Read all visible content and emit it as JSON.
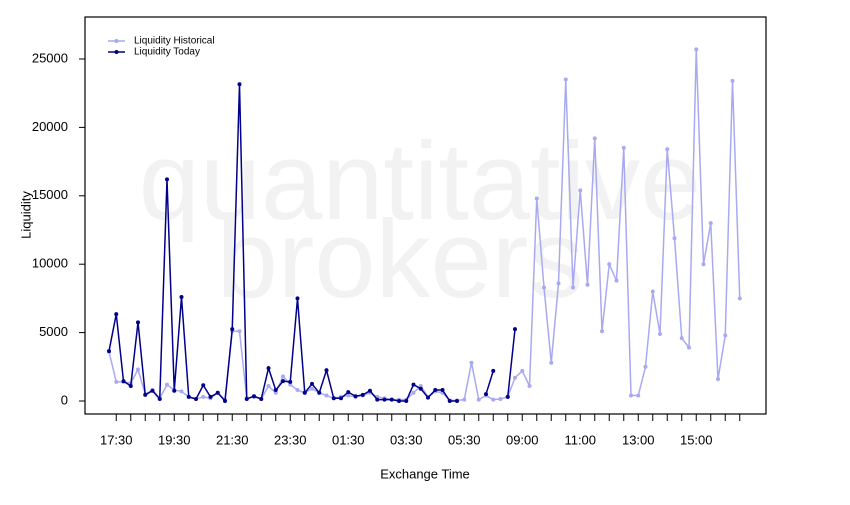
{
  "chart_data": {
    "type": "line",
    "watermark": [
      "quantitative",
      "brokers"
    ],
    "x_label": "Exchange Time",
    "y_label": "Liquidity",
    "legend": "top-left",
    "categories": [
      null,
      "17:30",
      null,
      null,
      null,
      null,
      null,
      null,
      null,
      "19:30",
      null,
      null,
      null,
      null,
      null,
      null,
      null,
      "21:30",
      null,
      null,
      null,
      null,
      null,
      null,
      null,
      "23:30",
      null,
      null,
      null,
      null,
      null,
      null,
      null,
      "01:30",
      null,
      null,
      null,
      null,
      null,
      null,
      null,
      "03:30",
      null,
      null,
      null,
      null,
      null,
      null,
      null,
      "05:30",
      null,
      null,
      null,
      null,
      null,
      null,
      null,
      "09:00",
      null,
      null,
      null,
      null,
      null,
      null,
      null,
      "11:00",
      null,
      null,
      null,
      null,
      null,
      null,
      null,
      "13:00",
      null,
      null,
      null,
      null,
      null,
      null,
      null,
      "15:00",
      null,
      null,
      null,
      null,
      null,
      null
    ],
    "series": [
      {
        "name": "Liquidity Historical",
        "color": "#a9a9f2",
        "values": [
          3600,
          1400,
          1400,
          1300,
          2300,
          500,
          800,
          200,
          1200,
          800,
          700,
          300,
          150,
          300,
          200,
          600,
          100,
          5100,
          5100,
          200,
          300,
          150,
          1100,
          600,
          1800,
          1200,
          800,
          600,
          900,
          600,
          400,
          200,
          300,
          400,
          300,
          400,
          600,
          300,
          200,
          100,
          100,
          100,
          600,
          1100,
          300,
          700,
          600,
          50,
          50,
          100,
          2800,
          100,
          400,
          100,
          150,
          300,
          1700,
          2200,
          1100,
          14800,
          8300,
          2800,
          8600,
          23500,
          8300,
          15400,
          8500,
          19200,
          5100,
          10000,
          8800,
          18500,
          400,
          400,
          2500,
          8000,
          4900,
          18400,
          11900,
          4600,
          3900,
          25700,
          10000,
          13000,
          1600,
          4800,
          23400,
          7500
        ]
      },
      {
        "name": "Liquidity Today",
        "color": "#00008b",
        "values": [
          3650,
          6350,
          1450,
          1100,
          5750,
          450,
          750,
          150,
          16200,
          750,
          7600,
          300,
          150,
          1150,
          300,
          600,
          0,
          5250,
          23150,
          150,
          350,
          150,
          2400,
          800,
          1450,
          1400,
          7500,
          600,
          1250,
          600,
          2250,
          200,
          200,
          650,
          350,
          450,
          750,
          100,
          100,
          100,
          0,
          0,
          1200,
          900,
          250,
          800,
          800,
          0,
          0,
          null,
          null,
          null,
          500,
          2200,
          null,
          300,
          5250,
          null,
          null,
          null,
          null,
          null,
          null,
          null,
          null,
          null,
          null,
          null,
          null,
          null,
          null,
          null,
          null,
          null,
          null,
          null,
          null,
          null,
          null,
          null,
          null,
          null,
          null,
          null,
          null,
          null,
          null,
          null
        ]
      }
    ],
    "ylim": [
      -950,
      28070
    ],
    "yticks": [
      0,
      5000,
      10000,
      15000,
      20000,
      25000
    ]
  }
}
